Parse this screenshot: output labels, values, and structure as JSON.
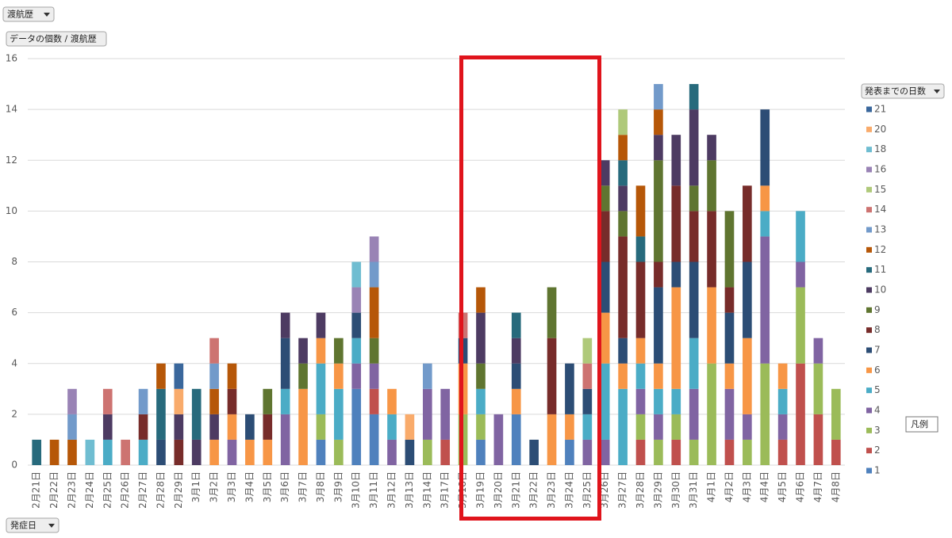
{
  "pivot_buttons": {
    "report_filter": "渡航歴",
    "values_field": "データの個数 / 渡航歴",
    "legend_field": "発表までの日数",
    "axis_field": "発症日",
    "legend_tooltip": "凡例"
  },
  "chart_data": {
    "type": "bar",
    "stacked": true,
    "grid": true,
    "legend": "right",
    "ylim": [
      0,
      16
    ],
    "yticks": [
      0,
      2,
      4,
      6,
      8,
      10,
      12,
      14,
      16
    ],
    "categories": [
      "2月21日",
      "2月22日",
      "2月23日",
      "2月24日",
      "2月25日",
      "2月26日",
      "2月27日",
      "2月28日",
      "2月29日",
      "3月1日",
      "3月2日",
      "3月3日",
      "3月4日",
      "3月5日",
      "3月6日",
      "3月7日",
      "3月8日",
      "3月9日",
      "3月10日",
      "3月11日",
      "3月12日",
      "3月13日",
      "3月14日",
      "3月17日",
      "3月18日",
      "3月19日",
      "3月20日",
      "3月21日",
      "3月22日",
      "3月23日",
      "3月24日",
      "3月25日",
      "3月26日",
      "3月27日",
      "3月28日",
      "3月29日",
      "3月30日",
      "3月31日",
      "4月1日",
      "4月2日",
      "4月3日",
      "4月4日",
      "4月5日",
      "4月6日",
      "4月7日",
      "4月8日"
    ],
    "series": [
      {
        "name": "1",
        "color": "#4f81bd",
        "values": [
          null,
          null,
          null,
          null,
          null,
          null,
          null,
          null,
          null,
          null,
          null,
          null,
          null,
          null,
          null,
          null,
          1,
          null,
          3,
          2,
          null,
          null,
          null,
          null,
          null,
          1,
          null,
          2,
          null,
          null,
          1,
          null,
          null,
          null,
          null,
          null,
          null,
          null,
          null,
          null,
          null,
          null,
          null,
          null,
          null,
          null
        ]
      },
      {
        "name": "2",
        "color": "#c0504d",
        "values": [
          null,
          null,
          null,
          null,
          null,
          null,
          null,
          null,
          null,
          null,
          null,
          null,
          null,
          null,
          null,
          null,
          null,
          null,
          null,
          1,
          null,
          null,
          null,
          1,
          null,
          null,
          null,
          null,
          null,
          null,
          null,
          null,
          null,
          null,
          1,
          null,
          1,
          null,
          null,
          1,
          null,
          null,
          1,
          4,
          2,
          1
        ]
      },
      {
        "name": "3",
        "color": "#9bbb59",
        "values": [
          null,
          null,
          null,
          null,
          null,
          null,
          null,
          null,
          null,
          null,
          null,
          null,
          null,
          null,
          null,
          null,
          1,
          1,
          null,
          null,
          null,
          null,
          1,
          null,
          2,
          1,
          null,
          null,
          null,
          null,
          null,
          null,
          null,
          null,
          1,
          1,
          1,
          1,
          4,
          null,
          1,
          4,
          null,
          3,
          2,
          2
        ]
      },
      {
        "name": "4",
        "color": "#8064a2",
        "values": [
          null,
          null,
          null,
          null,
          null,
          null,
          null,
          null,
          null,
          null,
          null,
          1,
          null,
          null,
          2,
          null,
          null,
          null,
          1,
          1,
          1,
          null,
          2,
          2,
          null,
          null,
          2,
          null,
          null,
          null,
          null,
          1,
          1,
          null,
          1,
          1,
          null,
          2,
          null,
          2,
          1,
          5,
          1,
          1,
          1,
          null
        ]
      },
      {
        "name": "5",
        "color": "#4bacc6",
        "values": [
          null,
          null,
          null,
          null,
          1,
          null,
          1,
          null,
          null,
          null,
          null,
          null,
          null,
          null,
          1,
          null,
          2,
          2,
          1,
          null,
          1,
          null,
          null,
          null,
          null,
          1,
          null,
          null,
          null,
          null,
          null,
          1,
          3,
          3,
          1,
          1,
          1,
          2,
          null,
          null,
          null,
          1,
          1,
          2,
          null,
          null
        ]
      },
      {
        "name": "6",
        "color": "#f79646",
        "values": [
          null,
          null,
          null,
          null,
          null,
          null,
          null,
          null,
          null,
          null,
          1,
          1,
          1,
          1,
          null,
          3,
          1,
          1,
          null,
          null,
          1,
          null,
          null,
          null,
          2,
          null,
          null,
          1,
          null,
          2,
          1,
          null,
          2,
          1,
          1,
          1,
          4,
          null,
          3,
          1,
          3,
          1,
          1,
          null,
          null,
          null
        ]
      },
      {
        "name": "7",
        "color": "#2c4d75",
        "values": [
          null,
          null,
          null,
          null,
          null,
          null,
          null,
          1,
          null,
          null,
          null,
          null,
          1,
          null,
          2,
          null,
          null,
          null,
          1,
          null,
          null,
          1,
          null,
          null,
          1,
          null,
          null,
          1,
          1,
          null,
          2,
          1,
          2,
          1,
          null,
          3,
          1,
          3,
          null,
          2,
          3,
          3,
          null,
          null,
          null,
          null
        ]
      },
      {
        "name": "8",
        "color": "#772c2a",
        "values": [
          null,
          null,
          null,
          null,
          null,
          null,
          1,
          null,
          1,
          null,
          null,
          1,
          null,
          1,
          null,
          null,
          null,
          null,
          null,
          null,
          null,
          null,
          null,
          null,
          null,
          null,
          null,
          null,
          null,
          3,
          null,
          null,
          2,
          4,
          3,
          1,
          3,
          2,
          3,
          1,
          3,
          null,
          null,
          null,
          null,
          null
        ]
      },
      {
        "name": "9",
        "color": "#5f7530",
        "values": [
          null,
          null,
          null,
          null,
          null,
          null,
          null,
          null,
          null,
          null,
          null,
          null,
          null,
          1,
          null,
          1,
          null,
          1,
          null,
          1,
          null,
          null,
          null,
          null,
          null,
          1,
          null,
          null,
          null,
          2,
          null,
          null,
          1,
          1,
          null,
          4,
          null,
          1,
          2,
          3,
          null,
          null,
          null,
          null,
          null,
          null
        ]
      },
      {
        "name": "10",
        "color": "#4d3b62",
        "values": [
          null,
          null,
          null,
          null,
          1,
          null,
          null,
          null,
          1,
          1,
          1,
          null,
          null,
          null,
          1,
          1,
          1,
          null,
          null,
          null,
          null,
          null,
          null,
          null,
          null,
          2,
          null,
          1,
          null,
          null,
          null,
          null,
          1,
          1,
          null,
          1,
          2,
          3,
          1,
          null,
          null,
          null,
          null,
          null,
          null,
          null
        ]
      },
      {
        "name": "11",
        "color": "#276a7c",
        "values": [
          1,
          null,
          null,
          null,
          null,
          null,
          null,
          2,
          null,
          2,
          null,
          null,
          null,
          null,
          null,
          null,
          null,
          null,
          null,
          null,
          null,
          null,
          null,
          null,
          null,
          null,
          null,
          1,
          null,
          null,
          null,
          null,
          null,
          1,
          1,
          null,
          null,
          1,
          null,
          null,
          null,
          null,
          null,
          null,
          null,
          null
        ]
      },
      {
        "name": "12",
        "color": "#b65708",
        "values": [
          null,
          1,
          1,
          null,
          null,
          null,
          null,
          1,
          null,
          null,
          1,
          1,
          null,
          null,
          null,
          null,
          null,
          null,
          null,
          2,
          null,
          null,
          null,
          null,
          null,
          1,
          null,
          null,
          null,
          null,
          null,
          null,
          null,
          1,
          2,
          1,
          null,
          null,
          null,
          null,
          null,
          null,
          null,
          null,
          null,
          null
        ]
      },
      {
        "name": "13",
        "color": "#729aca",
        "values": [
          null,
          null,
          1,
          null,
          null,
          null,
          1,
          null,
          null,
          null,
          1,
          null,
          null,
          null,
          null,
          null,
          null,
          null,
          null,
          1,
          null,
          null,
          1,
          null,
          null,
          null,
          null,
          null,
          null,
          null,
          null,
          null,
          null,
          null,
          null,
          1,
          null,
          null,
          null,
          null,
          null,
          null,
          null,
          null,
          null,
          null
        ]
      },
      {
        "name": "14",
        "color": "#cd7371",
        "values": [
          null,
          null,
          null,
          null,
          1,
          1,
          null,
          null,
          null,
          null,
          1,
          null,
          null,
          null,
          null,
          null,
          null,
          null,
          null,
          null,
          null,
          null,
          null,
          null,
          1,
          null,
          null,
          null,
          null,
          null,
          null,
          1,
          null,
          null,
          null,
          null,
          null,
          null,
          null,
          null,
          null,
          null,
          null,
          null,
          null,
          null
        ]
      },
      {
        "name": "15",
        "color": "#afc97a",
        "values": [
          null,
          null,
          null,
          null,
          null,
          null,
          null,
          null,
          null,
          null,
          null,
          null,
          null,
          null,
          null,
          null,
          null,
          null,
          null,
          null,
          null,
          null,
          null,
          null,
          null,
          null,
          null,
          null,
          null,
          null,
          null,
          1,
          null,
          1,
          null,
          null,
          null,
          null,
          null,
          null,
          null,
          null,
          null,
          null,
          null,
          null
        ]
      },
      {
        "name": "16",
        "color": "#9983b5",
        "values": [
          null,
          null,
          1,
          null,
          null,
          null,
          null,
          null,
          null,
          null,
          null,
          null,
          null,
          null,
          null,
          null,
          null,
          null,
          1,
          1,
          null,
          null,
          null,
          null,
          null,
          null,
          null,
          null,
          null,
          null,
          null,
          null,
          null,
          null,
          null,
          null,
          null,
          null,
          null,
          null,
          null,
          null,
          null,
          null,
          null,
          null
        ]
      },
      {
        "name": "18",
        "color": "#6fbdd1",
        "values": [
          null,
          null,
          null,
          1,
          null,
          null,
          null,
          null,
          null,
          null,
          null,
          null,
          null,
          null,
          null,
          null,
          null,
          null,
          1,
          null,
          null,
          null,
          null,
          null,
          null,
          null,
          null,
          null,
          null,
          null,
          null,
          null,
          null,
          null,
          null,
          null,
          null,
          null,
          null,
          null,
          null,
          null,
          null,
          null,
          null,
          null
        ]
      },
      {
        "name": "20",
        "color": "#f9ab6b",
        "values": [
          null,
          null,
          null,
          null,
          null,
          null,
          null,
          null,
          1,
          null,
          null,
          null,
          null,
          null,
          null,
          null,
          null,
          null,
          null,
          null,
          null,
          1,
          null,
          null,
          null,
          null,
          null,
          null,
          null,
          null,
          null,
          null,
          null,
          null,
          null,
          null,
          null,
          null,
          null,
          null,
          null,
          null,
          null,
          null,
          null,
          null
        ]
      },
      {
        "name": "21",
        "color": "#3a679c",
        "values": [
          null,
          null,
          null,
          null,
          null,
          null,
          null,
          null,
          1,
          null,
          null,
          null,
          null,
          null,
          null,
          null,
          null,
          null,
          null,
          null,
          null,
          null,
          null,
          null,
          null,
          null,
          null,
          null,
          null,
          null,
          null,
          null,
          null,
          null,
          null,
          null,
          null,
          null,
          null,
          null,
          null,
          null,
          null,
          null,
          null,
          null
        ]
      }
    ]
  }
}
